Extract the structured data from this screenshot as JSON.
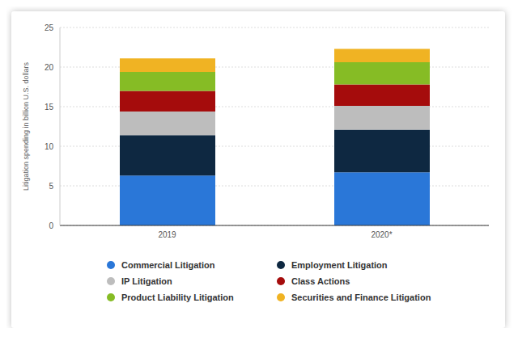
{
  "chart_data": {
    "type": "bar",
    "stacked": true,
    "y_label": "Litigation spending in billion U.S. dollars",
    "categories": [
      "2019",
      "2020*"
    ],
    "series": [
      {
        "name": "Commercial Litigation",
        "color": "#2a77d8",
        "values": [
          6.3,
          6.7
        ]
      },
      {
        "name": "Employment Litigation",
        "color": "#0e2841",
        "values": [
          5.1,
          5.4
        ]
      },
      {
        "name": "IP Litigation",
        "color": "#bdbdbd",
        "values": [
          3.0,
          3.0
        ]
      },
      {
        "name": "Class Actions",
        "color": "#a50c0c",
        "values": [
          2.6,
          2.7
        ]
      },
      {
        "name": "Product Liability Litigation",
        "color": "#86bc25",
        "values": [
          2.4,
          2.8
        ]
      },
      {
        "name": "Securities and Finance Litigation",
        "color": "#f0b323",
        "values": [
          1.7,
          1.7
        ]
      }
    ],
    "ylim": [
      0,
      25
    ],
    "yticks": [
      0,
      5,
      10,
      15,
      20,
      25
    ],
    "grid": true
  }
}
